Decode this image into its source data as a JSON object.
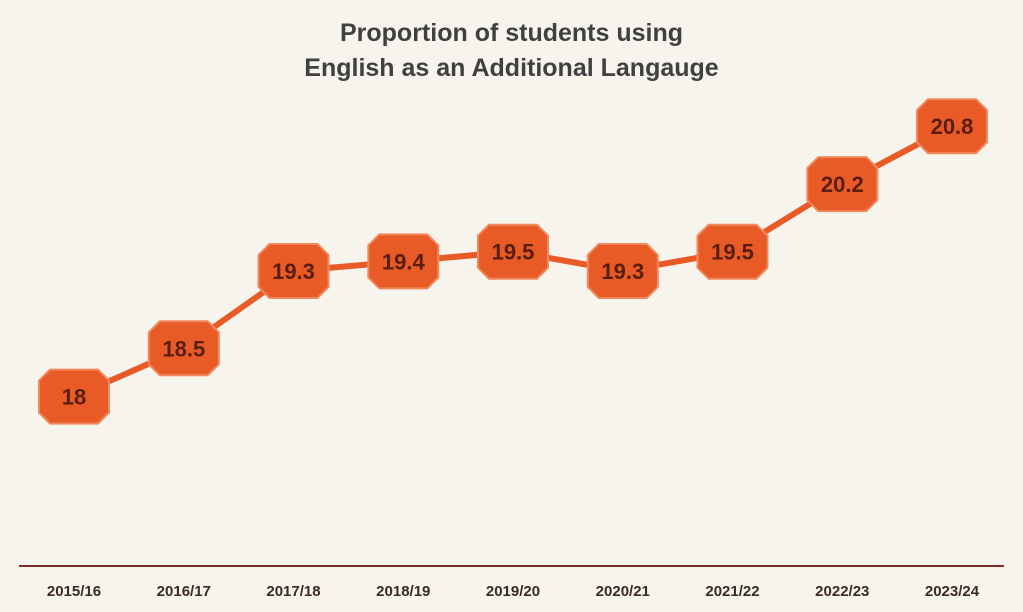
{
  "chart_data": {
    "type": "line",
    "title_lines": [
      "Proportion of students using",
      "English as an Additional Langauge"
    ],
    "categories": [
      "2015/16",
      "2016/17",
      "2017/18",
      "2018/19",
      "2019/20",
      "2020/21",
      "2021/22",
      "2022/23",
      "2023/24"
    ],
    "values": [
      18,
      18.5,
      19.3,
      19.4,
      19.5,
      19.3,
      19.5,
      20.2,
      20.8
    ],
    "value_labels": [
      "18",
      "18.5",
      "19.3",
      "19.4",
      "19.5",
      "19.3",
      "19.5",
      "20.2",
      "20.8"
    ],
    "xlabel": "",
    "ylabel": "",
    "ylim": [
      16.1,
      21.9
    ],
    "grid": false,
    "legend": "none",
    "colors": {
      "line": "#e85a26",
      "marker_fill": "#e85a26",
      "marker_border": "#f08a5c",
      "label_text": "#5a1e0e",
      "axis": "#7a2e2e",
      "background": "#f7f4ee"
    }
  }
}
